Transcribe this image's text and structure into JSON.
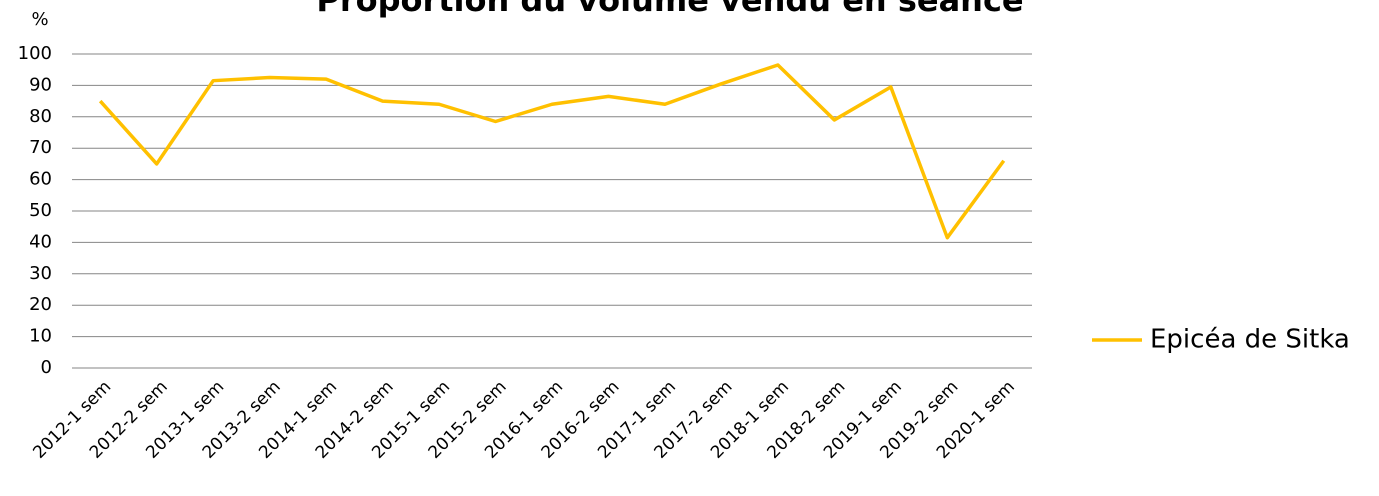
{
  "chart_data": {
    "type": "line",
    "title": "Proportion du volume vendu en séance",
    "y_label": "%",
    "categories": [
      "2012-1 sem",
      "2012-2 sem",
      "2013-1 sem",
      "2013-2 sem",
      "2014-1 sem",
      "2014-2 sem",
      "2015-1 sem",
      "2015-2 sem",
      "2016-1 sem",
      "2016-2 sem",
      "2017-1 sem",
      "2017-2 sem",
      "2018-1 sem",
      "2018-2 sem",
      "2019-1 sem",
      "2019-2 sem",
      "2020-1 sem"
    ],
    "series": [
      {
        "name": "Epicéa de Sitka",
        "color": "#ffc000",
        "values": [
          85,
          65,
          91.5,
          92.5,
          92,
          85,
          84,
          78.5,
          84,
          86.5,
          84,
          90.5,
          96.5,
          79,
          89.5,
          41.5,
          66
        ]
      }
    ],
    "ylim": [
      0,
      100
    ],
    "yticks": [
      0,
      10,
      20,
      30,
      40,
      50,
      60,
      70,
      80,
      90,
      100
    ],
    "grid": true,
    "legend": "right"
  }
}
